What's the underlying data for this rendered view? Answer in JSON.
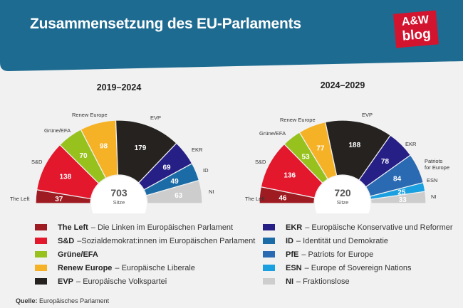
{
  "title": "Zusammensetzung des EU-Parlaments",
  "logo": {
    "line1": "A&W",
    "line2": "blog",
    "color": "#d3142f"
  },
  "header_color": "#1e6b91",
  "chart_data": [
    {
      "type": "pie",
      "subtype": "parliament-semicircle",
      "title": "2019–2024",
      "total": 703,
      "total_label": "Sitze",
      "categories": [
        "The Left",
        "S&D",
        "Grüne/EFA",
        "Renew Europe",
        "EVP",
        "EKR",
        "ID",
        "NI"
      ],
      "values": [
        37,
        138,
        70,
        98,
        179,
        69,
        49,
        63
      ],
      "colors": [
        "#9e1b22",
        "#e3182d",
        "#97c21e",
        "#f6b226",
        "#252220",
        "#261f86",
        "#1b6ca6",
        "#cdcdcd"
      ]
    },
    {
      "type": "pie",
      "subtype": "parliament-semicircle",
      "title": "2024–2029",
      "total": 720,
      "total_label": "Sitze",
      "categories": [
        "The Left",
        "S&D",
        "Grüne/EFA",
        "Renew Europe",
        "EVP",
        "EKR",
        "Patriots for Europe",
        "ESN",
        "NI"
      ],
      "values": [
        46,
        136,
        53,
        77,
        188,
        78,
        84,
        25,
        33
      ],
      "colors": [
        "#9e1b22",
        "#e3182d",
        "#97c21e",
        "#f6b226",
        "#252220",
        "#261f86",
        "#2a6ab3",
        "#1aa0e0",
        "#cdcdcd"
      ]
    }
  ],
  "legend_left": [
    {
      "name": "The Left",
      "desc": "– Die Linken im Europäischen Parlament",
      "color": "#9e1b22"
    },
    {
      "name": "S&D",
      "desc": "–Sozialdemokrat:innen im Europäischen Parlament",
      "color": "#e3182d"
    },
    {
      "name": "Grüne/EFA",
      "desc": "",
      "color": "#97c21e"
    },
    {
      "name": "Renew Europe",
      "desc": "– Europäische Liberale",
      "color": "#f6b226"
    },
    {
      "name": "EVP",
      "desc": "– Europäische Volkspartei",
      "color": "#252220"
    }
  ],
  "legend_right": [
    {
      "name": "EKR",
      "desc": "– Europäische Konservative und Reformer",
      "color": "#261f86"
    },
    {
      "name": "ID",
      "desc": "– Identität und Demokratie",
      "color": "#1b6ca6"
    },
    {
      "name": "PfE",
      "desc": "– Patriots for Europe",
      "color": "#2a6ab3"
    },
    {
      "name": "ESN",
      "desc": "– Europe of Sovereign Nations",
      "color": "#1aa0e0"
    },
    {
      "name": "NI",
      "desc": "– Fraktionslose",
      "color": "#cdcdcd"
    }
  ],
  "source": {
    "label": "Quelle:",
    "text": "Europäisches Parlament"
  }
}
